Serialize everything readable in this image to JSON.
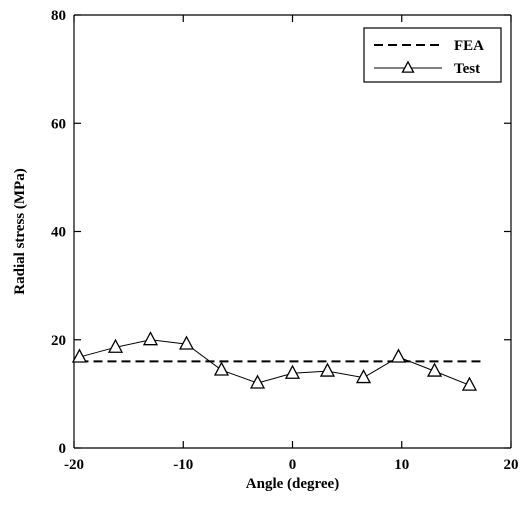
{
  "chart_data": {
    "type": "line",
    "xlabel": "Angle (degree)",
    "ylabel": "Radial stress (MPa)",
    "xlim": [
      -20,
      20
    ],
    "ylim": [
      0,
      80
    ],
    "xticks": [
      -20,
      -10,
      0,
      10,
      20
    ],
    "yticks": [
      0,
      20,
      40,
      60,
      80
    ],
    "grid": false,
    "legend_position": "top-right",
    "series": [
      {
        "name": "FEA",
        "style": "dashed",
        "x": [
          -19.5,
          17.5
        ],
        "y": [
          16,
          16
        ]
      },
      {
        "name": "Test",
        "style": "solid-with-triangles",
        "x": [
          -19.5,
          -16.2,
          -13,
          -9.7,
          -6.5,
          -3.2,
          0,
          3.2,
          6.5,
          9.7,
          13,
          16.2
        ],
        "y": [
          16.8,
          18.6,
          20,
          19.2,
          14.4,
          12,
          13.8,
          14.2,
          13,
          16.8,
          14.2,
          11.6
        ]
      }
    ]
  }
}
